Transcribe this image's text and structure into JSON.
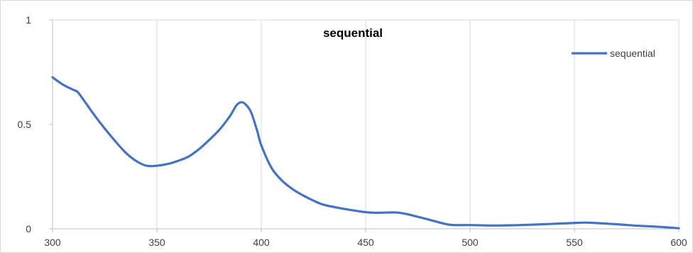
{
  "chart_data": {
    "type": "line",
    "title": "sequential",
    "xlabel": "",
    "ylabel": "",
    "xlim": [
      300,
      600
    ],
    "ylim": [
      0,
      1
    ],
    "x_ticks": [
      300,
      350,
      400,
      450,
      500,
      550,
      600
    ],
    "y_ticks": [
      0,
      0.5,
      1
    ],
    "grid": "vertical",
    "legend": "top-right",
    "series": [
      {
        "name": "sequential",
        "color": "#4472C4",
        "x": [
          300,
          305,
          310,
          312,
          315,
          320,
          325,
          330,
          335,
          340,
          345,
          350,
          355,
          360,
          365,
          370,
          375,
          380,
          385,
          388,
          390,
          392,
          395,
          398,
          400,
          405,
          410,
          415,
          420,
          425,
          430,
          440,
          450,
          455,
          460,
          465,
          470,
          480,
          490,
          500,
          510,
          520,
          530,
          540,
          550,
          555,
          560,
          570,
          580,
          590,
          600
        ],
        "y": [
          0.725,
          0.69,
          0.665,
          0.655,
          0.615,
          0.545,
          0.48,
          0.42,
          0.365,
          0.325,
          0.302,
          0.302,
          0.31,
          0.325,
          0.345,
          0.38,
          0.425,
          0.475,
          0.54,
          0.59,
          0.605,
          0.6,
          0.56,
          0.47,
          0.4,
          0.29,
          0.23,
          0.19,
          0.16,
          0.135,
          0.115,
          0.095,
          0.08,
          0.077,
          0.078,
          0.078,
          0.07,
          0.045,
          0.02,
          0.018,
          0.016,
          0.017,
          0.02,
          0.024,
          0.028,
          0.03,
          0.028,
          0.022,
          0.015,
          0.01,
          0.003
        ]
      }
    ]
  }
}
